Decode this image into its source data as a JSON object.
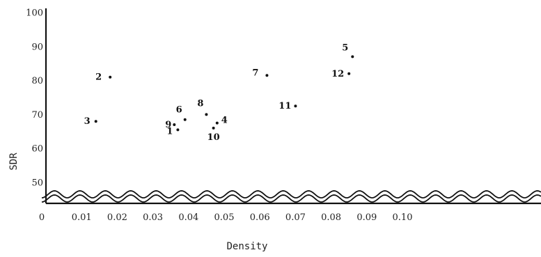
{
  "chart_data": {
    "type": "scatter",
    "title": "",
    "xlabel": "Density",
    "ylabel": "SDR",
    "x_ticks": [
      {
        "value": 0.0,
        "label": "0"
      },
      {
        "value": 0.01,
        "label": "0.01"
      },
      {
        "value": 0.02,
        "label": "0.02"
      },
      {
        "value": 0.03,
        "label": "0.03"
      },
      {
        "value": 0.04,
        "label": "0.04"
      },
      {
        "value": 0.05,
        "label": "0.05"
      },
      {
        "value": 0.06,
        "label": "0.06"
      },
      {
        "value": 0.07,
        "label": "0.07"
      },
      {
        "value": 0.08,
        "label": "0.08"
      },
      {
        "value": 0.09,
        "label": "0.09"
      },
      {
        "value": 0.1,
        "label": "0.10"
      }
    ],
    "y_ticks": [
      {
        "value": 50,
        "label": "50"
      },
      {
        "value": 60,
        "label": "60"
      },
      {
        "value": 70,
        "label": "70"
      },
      {
        "value": 80,
        "label": "80"
      },
      {
        "value": 90,
        "label": "90"
      },
      {
        "value": 100,
        "label": "100"
      }
    ],
    "xlim": [
      0.0,
      0.113
    ],
    "ylim": [
      50,
      100
    ],
    "axis_break": "wavy break between 0 and 50 on the y-axis",
    "grid": false,
    "points": [
      {
        "label": "1",
        "x": 0.037,
        "y": 65.5
      },
      {
        "label": "2",
        "x": 0.018,
        "y": 81
      },
      {
        "label": "3",
        "x": 0.014,
        "y": 68
      },
      {
        "label": "4",
        "x": 0.048,
        "y": 67.5
      },
      {
        "label": "5",
        "x": 0.086,
        "y": 87
      },
      {
        "label": "6",
        "x": 0.039,
        "y": 68.5
      },
      {
        "label": "7",
        "x": 0.062,
        "y": 81.5
      },
      {
        "label": "8",
        "x": 0.045,
        "y": 70
      },
      {
        "label": "9",
        "x": 0.036,
        "y": 67
      },
      {
        "label": "10",
        "x": 0.047,
        "y": 66
      },
      {
        "label": "11",
        "x": 0.07,
        "y": 72.5
      },
      {
        "label": "12",
        "x": 0.085,
        "y": 82
      }
    ]
  }
}
